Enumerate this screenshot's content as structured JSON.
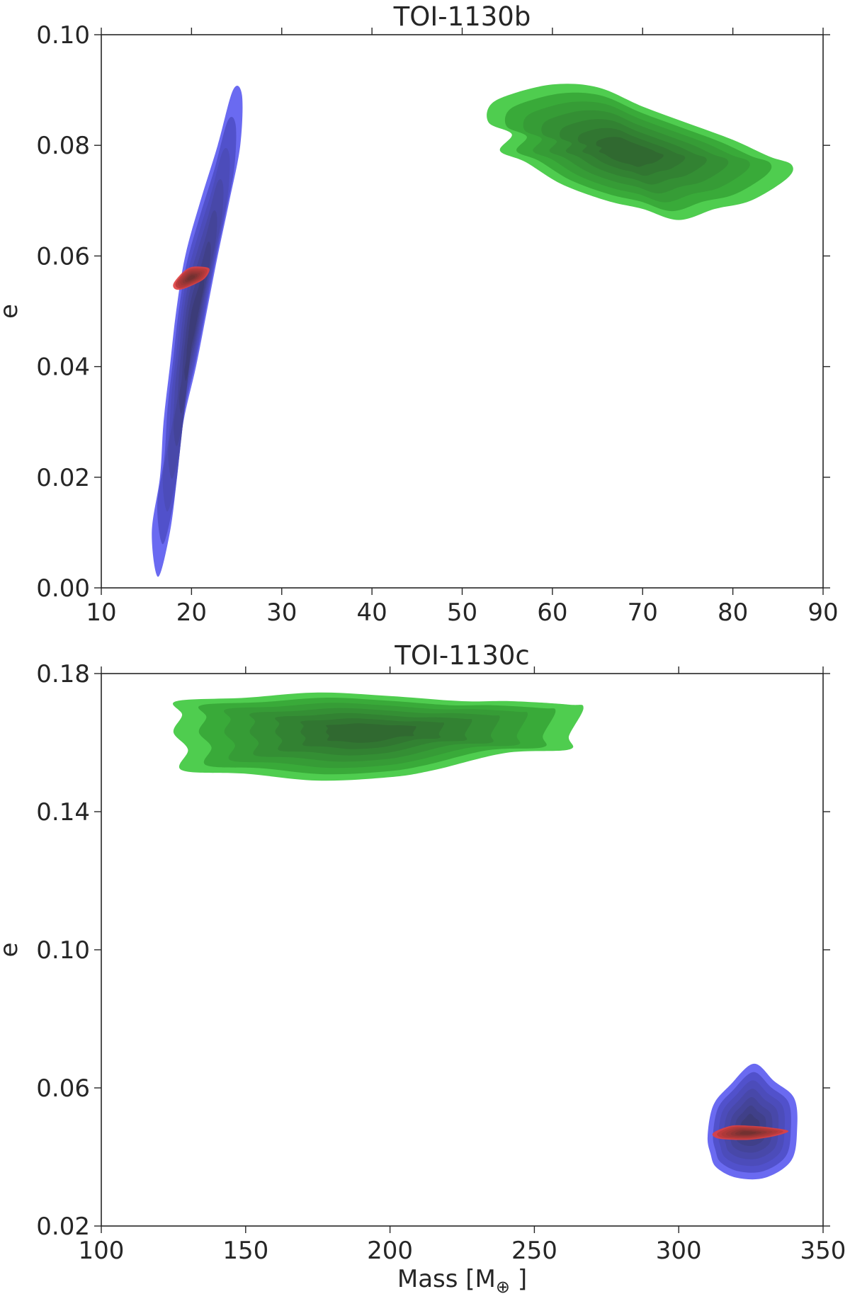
{
  "chart_data": [
    {
      "type": "contour",
      "title": "TOI-1130b",
      "xlabel": "",
      "ylabel": "e",
      "xlim": [
        10,
        90
      ],
      "ylim": [
        0.0,
        0.1
      ],
      "xticks": [
        "10",
        "20",
        "30",
        "40",
        "50",
        "60",
        "70",
        "80",
        "90"
      ],
      "yticks": [
        "0.00",
        "0.02",
        "0.04",
        "0.06",
        "0.08",
        "0.10"
      ],
      "distributions": [
        {
          "color": "#5a5af0",
          "polygon": [
            [
              16.3,
              0.002
            ],
            [
              17.6,
              0.01
            ],
            [
              18.4,
              0.02
            ],
            [
              19.1,
              0.03
            ],
            [
              20.5,
              0.04
            ],
            [
              21.7,
              0.05
            ],
            [
              22.9,
              0.06
            ],
            [
              24.2,
              0.07
            ],
            [
              25.4,
              0.08
            ],
            [
              25.6,
              0.089
            ],
            [
              24.6,
              0.09
            ],
            [
              22.9,
              0.08
            ],
            [
              21.0,
              0.07
            ],
            [
              19.3,
              0.06
            ],
            [
              18.3,
              0.05
            ],
            [
              17.6,
              0.04
            ],
            [
              16.9,
              0.03
            ],
            [
              16.5,
              0.02
            ],
            [
              15.6,
              0.01
            ]
          ]
        },
        {
          "color": "#3cc83c",
          "polygon": [
            [
              53,
              0.087
            ],
            [
              55,
              0.089
            ],
            [
              60,
              0.091
            ],
            [
              65,
              0.0905
            ],
            [
              70,
              0.087
            ],
            [
              75,
              0.084
            ],
            [
              80,
              0.081
            ],
            [
              84,
              0.078
            ],
            [
              86.5,
              0.0765
            ],
            [
              86,
              0.074
            ],
            [
              82,
              0.07
            ],
            [
              78,
              0.0685
            ],
            [
              74,
              0.0665
            ],
            [
              70,
              0.0685
            ],
            [
              66,
              0.07
            ],
            [
              61,
              0.073
            ],
            [
              57,
              0.077
            ],
            [
              54.2,
              0.079
            ],
            [
              55.5,
              0.082
            ],
            [
              53,
              0.084
            ]
          ]
        },
        {
          "color": "#e04040",
          "polygon": [
            [
              18,
              0.055
            ],
            [
              19,
              0.057
            ],
            [
              20,
              0.058
            ],
            [
              21.5,
              0.058
            ],
            [
              22,
              0.0575
            ],
            [
              21.5,
              0.056
            ],
            [
              20.5,
              0.055
            ],
            [
              19,
              0.054
            ],
            [
              18.2,
              0.054
            ]
          ]
        }
      ]
    },
    {
      "type": "contour",
      "title": "TOI-1130c",
      "xlabel": "Mass [M",
      "xlabel_symbol": "⊕",
      "xlabel_close": " ]",
      "ylabel": "e",
      "xlim": [
        100,
        350
      ],
      "ylim": [
        0.02,
        0.18
      ],
      "xticks": [
        "100",
        "150",
        "200",
        "250",
        "300",
        "350"
      ],
      "yticks": [
        "0.02",
        "0.06",
        "0.10",
        "0.14",
        "0.18"
      ],
      "distributions": [
        {
          "color": "#3cc83c",
          "polygon": [
            [
              126,
              0.172
            ],
            [
              150,
              0.173
            ],
            [
              175,
              0.1745
            ],
            [
              200,
              0.1735
            ],
            [
              225,
              0.172
            ],
            [
              242,
              0.172
            ],
            [
              262,
              0.171
            ],
            [
              267,
              0.17
            ],
            [
              262,
              0.162
            ],
            [
              262,
              0.158
            ],
            [
              240,
              0.157
            ],
            [
              215,
              0.152
            ],
            [
              200,
              0.15
            ],
            [
              175,
              0.149
            ],
            [
              150,
              0.151
            ],
            [
              128,
              0.152
            ],
            [
              130,
              0.158
            ],
            [
              125,
              0.163
            ],
            [
              128,
              0.168
            ]
          ]
        },
        {
          "color": "#5a5af0",
          "polygon": [
            [
              310,
              0.046
            ],
            [
              312,
              0.055
            ],
            [
              318,
              0.061
            ],
            [
              326,
              0.067
            ],
            [
              333,
              0.062
            ],
            [
              340,
              0.057
            ],
            [
              341,
              0.048
            ],
            [
              339,
              0.039
            ],
            [
              330,
              0.034
            ],
            [
              320,
              0.034
            ],
            [
              313,
              0.037
            ],
            [
              311,
              0.041
            ]
          ]
        },
        {
          "color": "#e04040",
          "polygon": [
            [
              312,
              0.047
            ],
            [
              318,
              0.049
            ],
            [
              325,
              0.049
            ],
            [
              332,
              0.0485
            ],
            [
              338,
              0.0475
            ],
            [
              333,
              0.046
            ],
            [
              325,
              0.045
            ],
            [
              318,
              0.045
            ],
            [
              313,
              0.0455
            ]
          ]
        }
      ]
    }
  ]
}
